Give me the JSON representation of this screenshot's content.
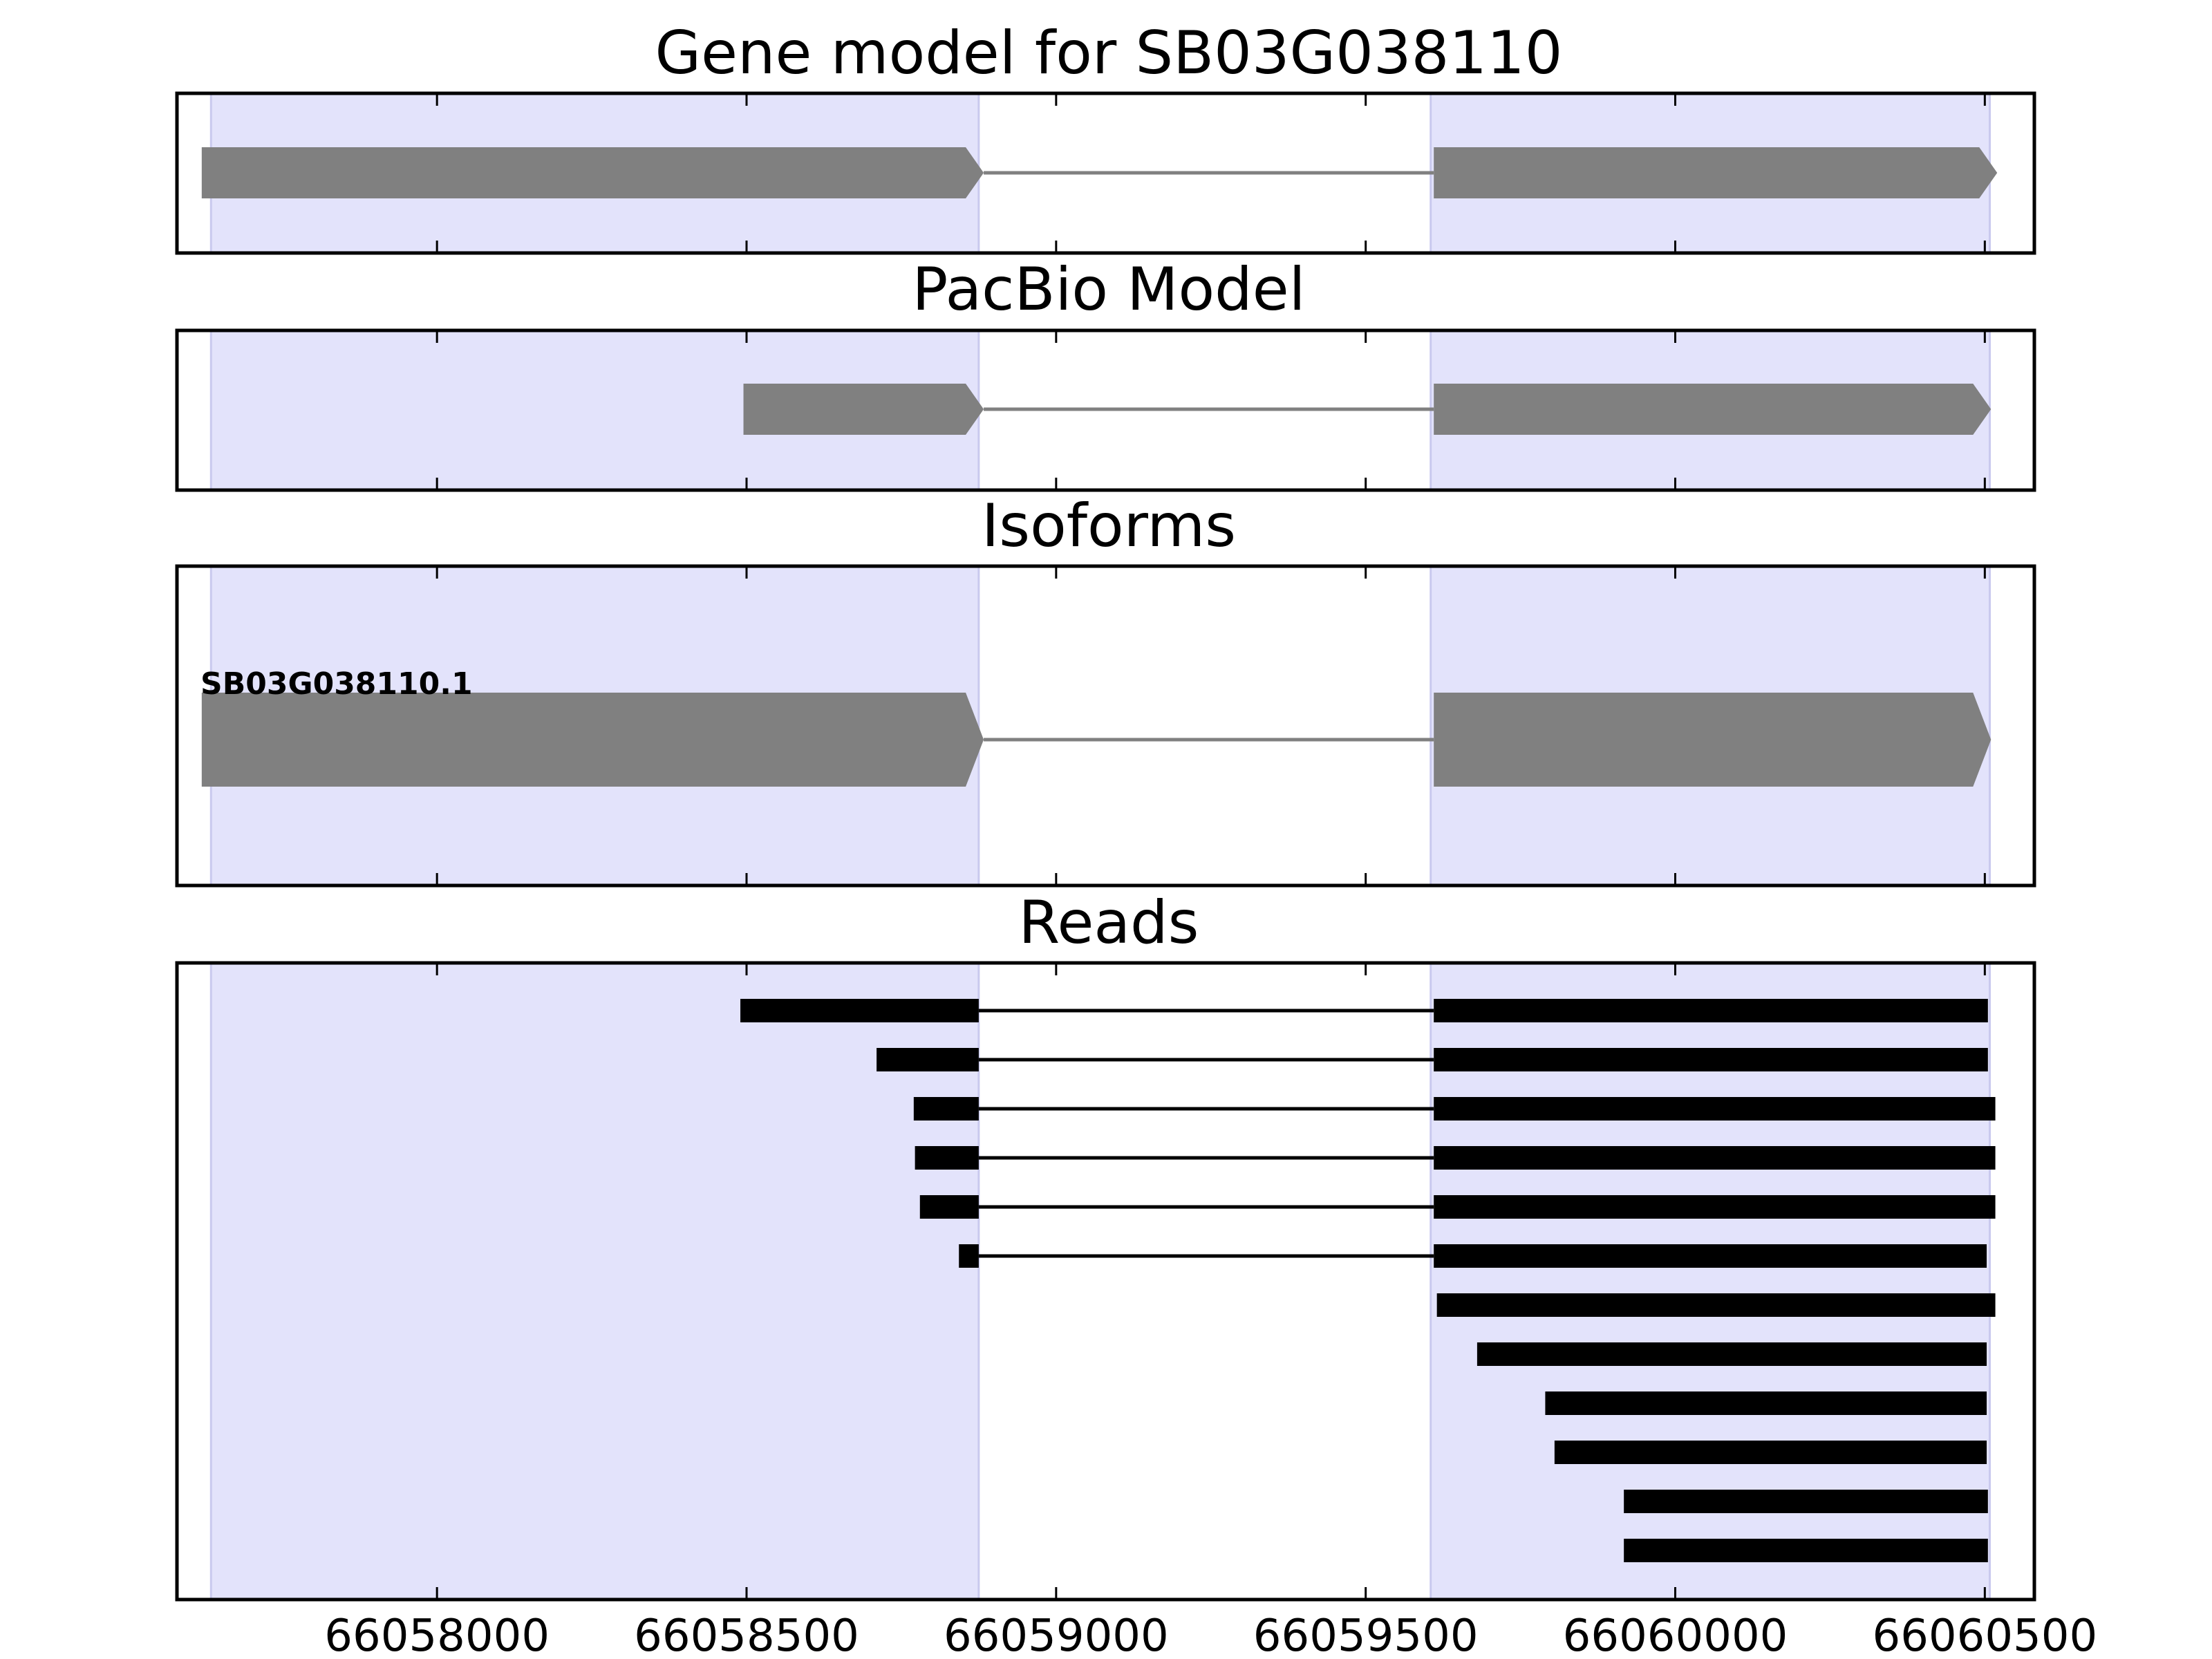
{
  "chart_data": [
    {
      "panel": "gene_model",
      "type": "gene_track",
      "title": "Gene model for SB03G038110",
      "xlim": [
        66057580,
        66060580
      ],
      "exon_shading": [
        [
          66057635,
          66058875
        ],
        [
          66059605,
          66060508
        ]
      ],
      "features": [
        {
          "exons": [
            [
              66057620,
              66058883
            ],
            [
              66059610,
              66060520
            ]
          ],
          "strand": "+"
        }
      ]
    },
    {
      "panel": "pacbio_model",
      "type": "gene_track",
      "title": "PacBio Model",
      "xlim": [
        66057580,
        66060580
      ],
      "exon_shading": [
        [
          66057635,
          66058875
        ],
        [
          66059605,
          66060508
        ]
      ],
      "features": [
        {
          "exons": [
            [
              66058495,
              66058883
            ],
            [
              66059610,
              66060510
            ]
          ],
          "strand": "+"
        }
      ]
    },
    {
      "panel": "isoforms",
      "type": "gene_track",
      "title": "Isoforms",
      "xlim": [
        66057580,
        66060580
      ],
      "exon_shading": [
        [
          66057635,
          66058875
        ],
        [
          66059605,
          66060508
        ]
      ],
      "features": [
        {
          "name": "SB03G038110.1",
          "exons": [
            [
              66057620,
              66058883
            ],
            [
              66059610,
              66060510
            ]
          ],
          "strand": "+"
        }
      ]
    },
    {
      "panel": "reads",
      "type": "read_track",
      "title": "Reads",
      "xlim": [
        66057580,
        66060580
      ],
      "x_ticks": [
        "66058000",
        "66058500",
        "66059000",
        "66059500",
        "66060000",
        "66060500"
      ],
      "x_tick_values": [
        66058000,
        66058500,
        66059000,
        66059500,
        66060000,
        66060500
      ],
      "exon_shading": [
        [
          66057635,
          66058875
        ],
        [
          66059605,
          66060508
        ]
      ],
      "reads": [
        {
          "exons": [
            [
              66058490,
              66058875
            ],
            [
              66059610,
              66060505
            ]
          ]
        },
        {
          "exons": [
            [
              66058710,
              66058875
            ],
            [
              66059610,
              66060505
            ]
          ]
        },
        {
          "exons": [
            [
              66058770,
              66058875
            ],
            [
              66059610,
              66060517
            ]
          ]
        },
        {
          "exons": [
            [
              66058772,
              66058875
            ],
            [
              66059610,
              66060517
            ]
          ]
        },
        {
          "exons": [
            [
              66058780,
              66058875
            ],
            [
              66059610,
              66060517
            ]
          ]
        },
        {
          "exons": [
            [
              66058843,
              66058875
            ],
            [
              66059610,
              66060503
            ]
          ]
        },
        {
          "exons": [
            [
              66059615,
              66060517
            ]
          ]
        },
        {
          "exons": [
            [
              66059680,
              66060503
            ]
          ]
        },
        {
          "exons": [
            [
              66059790,
              66060503
            ]
          ]
        },
        {
          "exons": [
            [
              66059805,
              66060503
            ]
          ]
        },
        {
          "exons": [
            [
              66059917,
              66060505
            ]
          ]
        },
        {
          "exons": [
            [
              66059917,
              66060505
            ]
          ]
        }
      ]
    }
  ]
}
